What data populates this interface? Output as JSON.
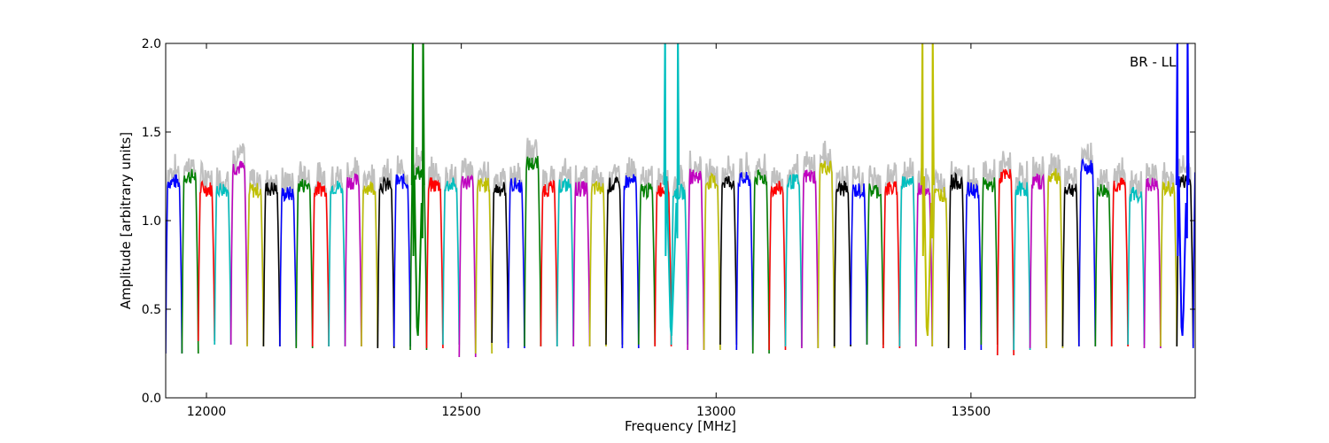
{
  "chart_data": {
    "type": "line",
    "title": "",
    "xlabel": "Frequency [MHz]",
    "ylabel": "Amplitude [arbitrary units]",
    "xlim": [
      11920,
      13940
    ],
    "ylim": [
      0.0,
      2.0
    ],
    "xticks": [
      12000,
      12500,
      13000,
      13500
    ],
    "xtick_labels": [
      "12000",
      "12500",
      "13000",
      "13500"
    ],
    "yticks": [
      0.0,
      0.5,
      1.0,
      1.5,
      2.0
    ],
    "ytick_labels": [
      "0.0",
      "0.5",
      "1.0",
      "1.5",
      "2.0"
    ],
    "grid": false,
    "annotation": "BR - LL",
    "series_colors": [
      "#0000ff",
      "#008000",
      "#ff0000",
      "#00bfbf",
      "#bf00bf",
      "#bfbf00",
      "#000000"
    ],
    "background_color": "#c0c0c0",
    "channel_start_mhz": 11920,
    "channel_width_mhz": 32,
    "channels": [
      {
        "plateau": 1.22,
        "min": 0.25
      },
      {
        "plateau": 1.25,
        "min": 0.25
      },
      {
        "plateau": 1.18,
        "min": 0.32
      },
      {
        "plateau": 1.18,
        "min": 0.3
      },
      {
        "plateau": 1.3,
        "min": 0.3
      },
      {
        "plateau": 1.17,
        "min": 0.29
      },
      {
        "plateau": 1.18,
        "min": 0.29
      },
      {
        "plateau": 1.15,
        "min": 0.29
      },
      {
        "plateau": 1.2,
        "min": 0.28
      },
      {
        "plateau": 1.18,
        "min": 0.29
      },
      {
        "plateau": 1.19,
        "min": 0.29
      },
      {
        "plateau": 1.22,
        "min": 0.29
      },
      {
        "plateau": 1.19,
        "min": 0.29
      },
      {
        "plateau": 1.2,
        "min": 0.28
      },
      {
        "plateau": 1.22,
        "min": 0.29
      },
      {
        "plateau": 1.27,
        "min": 0.27
      },
      {
        "plateau": 1.2,
        "min": 0.28
      },
      {
        "plateau": 1.2,
        "min": 0.3,
        "spike": true
      },
      {
        "plateau": 1.22,
        "min": 0.23
      },
      {
        "plateau": 1.2,
        "min": 0.25
      },
      {
        "plateau": 1.18,
        "min": 0.31
      },
      {
        "plateau": 1.2,
        "min": 0.28
      },
      {
        "plateau": 1.32,
        "min": 0.29
      },
      {
        "plateau": 1.18,
        "min": 0.29
      },
      {
        "plateau": 1.2,
        "min": 0.29
      },
      {
        "plateau": 1.18,
        "min": 0.29
      },
      {
        "plateau": 1.18,
        "min": 0.29
      },
      {
        "plateau": 1.2,
        "min": 0.3
      },
      {
        "plateau": 1.22,
        "min": 0.28
      },
      {
        "plateau": 1.17,
        "min": 0.3
      },
      {
        "plateau": 1.18,
        "min": 0.29
      },
      {
        "plateau": 1.16,
        "min": 0.3
      },
      {
        "plateau": 1.25,
        "min": 0.27
      },
      {
        "plateau": 1.22,
        "min": 0.27
      },
      {
        "plateau": 1.22,
        "min": 0.3,
        "spike": true
      },
      {
        "plateau": 1.23,
        "min": 0.27
      },
      {
        "plateau": 1.24,
        "min": 0.25
      },
      {
        "plateau": 1.18,
        "min": 0.27
      },
      {
        "plateau": 1.22,
        "min": 0.29
      },
      {
        "plateau": 1.25,
        "min": 0.28
      },
      {
        "plateau": 1.3,
        "min": 0.28
      },
      {
        "plateau": 1.18,
        "min": 0.29
      },
      {
        "plateau": 1.17,
        "min": 0.3
      },
      {
        "plateau": 1.17,
        "min": 0.3
      },
      {
        "plateau": 1.18,
        "min": 0.28
      },
      {
        "plateau": 1.22,
        "min": 0.29
      },
      {
        "plateau": 1.18,
        "min": 0.29
      },
      {
        "plateau": 1.15,
        "min": 0.29
      },
      {
        "plateau": 1.22,
        "min": 0.28
      },
      {
        "plateau": 1.17,
        "min": 0.27
      },
      {
        "plateau": 1.2,
        "min": 0.3,
        "spike": true
      },
      {
        "plateau": 1.25,
        "min": 0.24
      },
      {
        "plateau": 1.18,
        "min": 0.27
      },
      {
        "plateau": 1.22,
        "min": 0.28
      },
      {
        "plateau": 1.25,
        "min": 0.28
      },
      {
        "plateau": 1.18,
        "min": 0.29
      },
      {
        "plateau": 1.3,
        "min": 0.29
      },
      {
        "plateau": 1.17,
        "min": 0.29
      },
      {
        "plateau": 1.2,
        "min": 0.29
      },
      {
        "plateau": 1.15,
        "min": 0.3
      },
      {
        "plateau": 1.2,
        "min": 0.28
      },
      {
        "plateau": 1.18,
        "min": 0.29
      },
      {
        "plateau": 1.22,
        "min": 0.29
      },
      {
        "plateau": 1.3,
        "min": 0.28
      }
    ],
    "spikes": [
      {
        "x_start": 12405,
        "x_end": 12425,
        "color": "#008000"
      },
      {
        "x_start": 12900,
        "x_end": 12925,
        "color": "#00bfbf"
      },
      {
        "x_start": 13405,
        "x_end": 13425,
        "color": "#bfbf00"
      },
      {
        "x_start": 13905,
        "x_end": 13925,
        "color": "#0000ff"
      }
    ]
  }
}
